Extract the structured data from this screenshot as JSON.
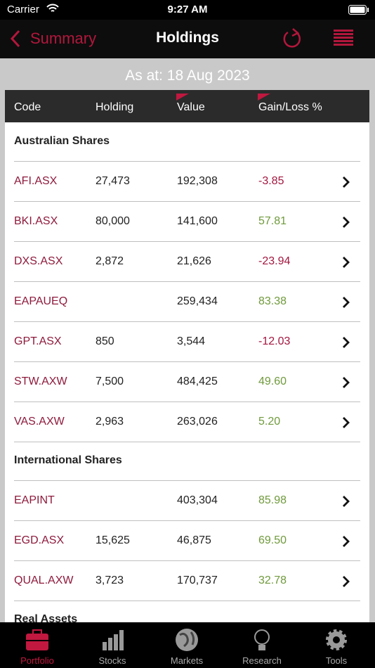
{
  "status_bar": {
    "carrier": "Carrier",
    "time": "9:27 AM"
  },
  "nav": {
    "back": "Summary",
    "title": "Holdings"
  },
  "as_at": "As at: 18 Aug 2023",
  "table": {
    "columns": [
      "Code",
      "Holding",
      "Value",
      "Gain/Loss %"
    ],
    "sections": [
      {
        "title": "Australian Shares",
        "rows": [
          [
            "AFI.ASX",
            "27,473",
            "192,308",
            "-3.85"
          ],
          [
            "BKI.ASX",
            "80,000",
            "141,600",
            "57.81"
          ],
          [
            "DXS.ASX",
            "2,872",
            "21,626",
            "-23.94"
          ],
          [
            "EAPAUEQ",
            null,
            "259,434",
            "83.38"
          ],
          [
            "GPT.ASX",
            "850",
            "3,544",
            "-12.03"
          ],
          [
            "STW.AXW",
            "7,500",
            "484,425",
            "49.60"
          ],
          [
            "VAS.AXW",
            "2,963",
            "263,026",
            "5.20"
          ]
        ]
      },
      {
        "title": "International Shares",
        "rows": [
          [
            "EAPINT",
            null,
            "403,304",
            "85.98"
          ],
          [
            "EGD.ASX",
            "15,625",
            "46,875",
            "69.50"
          ],
          [
            "QUAL.AXW",
            "3,723",
            "170,737",
            "32.78"
          ]
        ]
      },
      {
        "title": "Real Assets"
      }
    ]
  },
  "tabs": [
    "Portfolio",
    "Stocks",
    "Markets",
    "Research",
    "Tools"
  ]
}
